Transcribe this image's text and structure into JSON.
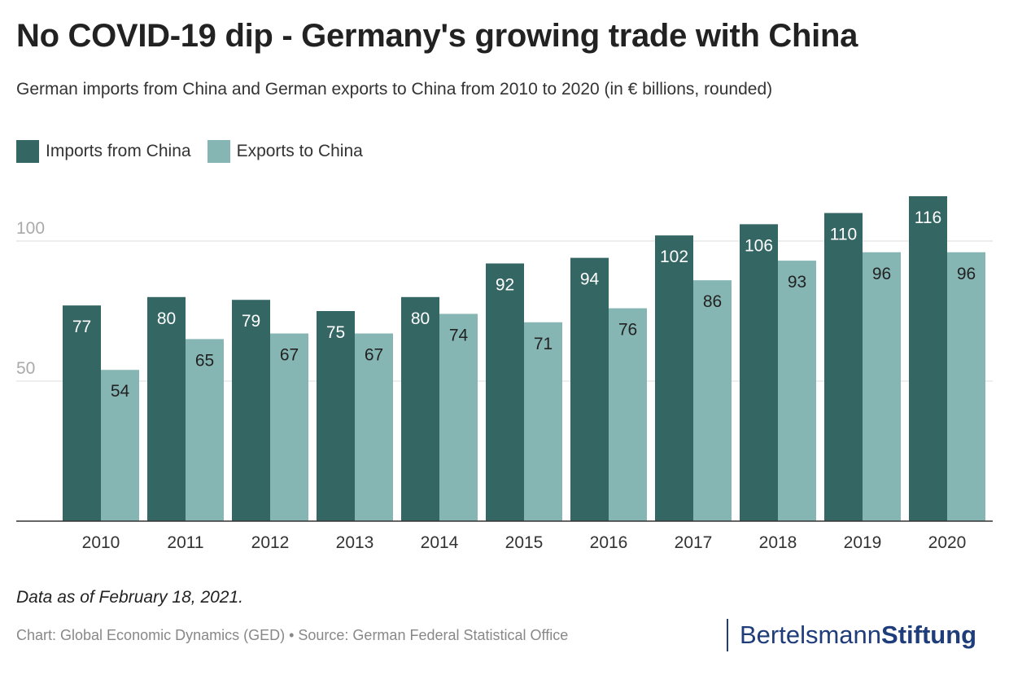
{
  "title": "No COVID-19 dip - Germany's growing trade with China",
  "subtitle": "German imports from China and German exports to China from 2010 to 2020 (in € billions, rounded)",
  "note": "Data as of February 18, 2021.",
  "source": "Chart: Global Economic Dynamics (GED) • Source: German Federal Statistical Office",
  "brand": {
    "part1": "Bertelsmann",
    "part2": "Stiftung"
  },
  "colors": {
    "imports": "#346664",
    "exports": "#86b6b4",
    "grid": "#dddddd",
    "baseline": "#333333",
    "brand": "#1f3d7a"
  },
  "chart_data": {
    "type": "bar",
    "categories": [
      "2010",
      "2011",
      "2012",
      "2013",
      "2014",
      "2015",
      "2016",
      "2017",
      "2018",
      "2019",
      "2020"
    ],
    "series": [
      {
        "name": "Imports from China",
        "values": [
          77,
          80,
          79,
          75,
          80,
          92,
          94,
          102,
          106,
          110,
          116
        ]
      },
      {
        "name": "Exports to China",
        "values": [
          54,
          65,
          67,
          67,
          74,
          71,
          76,
          86,
          93,
          96,
          96
        ]
      }
    ],
    "yticks": [
      50,
      100
    ],
    "ylim": [
      0,
      120
    ],
    "grid": true,
    "legend": "top-left",
    "data_labels": true
  }
}
